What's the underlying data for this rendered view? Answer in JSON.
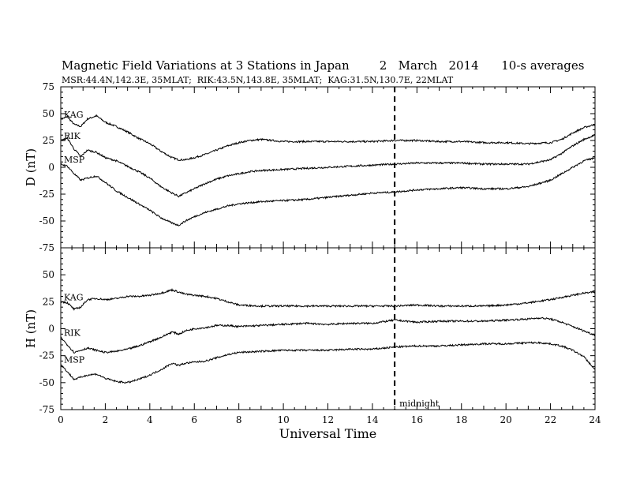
{
  "chart_data": [
    {
      "type": "line",
      "title": "Magnetic Field Variations at 3 Stations in Japan        2   March   2014      10-s averages",
      "subtitle": "MSR:44.4N,142.3E, 35MLAT;  RIK:43.5N,143.8E, 35MLAT;  KAG:31.5N,130.7E, 22MLAT",
      "ylabel": "D (nT)",
      "xlabel": "",
      "xlim": [
        0,
        24
      ],
      "ylim": [
        -75,
        75
      ],
      "yticks": [
        "75",
        "50",
        "25",
        "0",
        "-25",
        "-50",
        "-75"
      ],
      "series": [
        {
          "name": "KAG",
          "x": [
            0,
            0.3,
            0.6,
            0.9,
            1.2,
            1.6,
            2,
            2.5,
            3,
            3.5,
            4,
            4.5,
            5,
            5.3,
            5.6,
            6,
            6.5,
            7,
            7.5,
            8,
            8.5,
            9,
            9.5,
            10,
            11,
            12,
            13,
            14,
            15,
            16,
            17,
            18,
            19,
            20,
            21,
            22,
            22.5,
            23,
            23.5,
            24
          ],
          "values": [
            45,
            47,
            40,
            38,
            45,
            48,
            42,
            38,
            33,
            27,
            22,
            15,
            9,
            7,
            7,
            9,
            12,
            16,
            20,
            23,
            25,
            26,
            25,
            24,
            24,
            24,
            24,
            24,
            25,
            25,
            24,
            24,
            23,
            23,
            22,
            23,
            26,
            32,
            37,
            40
          ]
        },
        {
          "name": "RIK",
          "x": [
            0,
            0.3,
            0.6,
            0.9,
            1.2,
            1.6,
            2,
            2.5,
            3,
            3.5,
            4,
            4.5,
            5,
            5.3,
            5.6,
            6,
            6.5,
            7,
            7.5,
            8,
            8.5,
            9,
            10,
            11,
            12,
            13,
            14,
            15,
            16,
            17,
            18,
            19,
            20,
            21,
            22,
            22.5,
            23,
            23.5,
            24
          ],
          "values": [
            25,
            27,
            17,
            10,
            16,
            14,
            9,
            6,
            1,
            -4,
            -10,
            -18,
            -24,
            -27,
            -24,
            -20,
            -15,
            -11,
            -8,
            -6,
            -4,
            -3,
            -2,
            -1,
            0,
            1,
            2,
            3,
            4,
            4,
            4,
            3,
            3,
            3,
            7,
            13,
            20,
            26,
            30
          ]
        },
        {
          "name": "MSP",
          "x": [
            0,
            0.3,
            0.6,
            0.9,
            1.2,
            1.6,
            2,
            2.5,
            3,
            3.5,
            4,
            4.5,
            5,
            5.3,
            5.6,
            6,
            6.5,
            7,
            7.5,
            8,
            8.5,
            9,
            10,
            11,
            12,
            13,
            14,
            15,
            16,
            17,
            18,
            19,
            20,
            21,
            22,
            22.5,
            23,
            23.5,
            24
          ],
          "values": [
            3,
            1,
            -6,
            -12,
            -10,
            -8,
            -14,
            -22,
            -28,
            -34,
            -40,
            -47,
            -52,
            -54,
            -50,
            -46,
            -42,
            -39,
            -36,
            -34,
            -33,
            -32,
            -31,
            -30,
            -28,
            -26,
            -24,
            -23,
            -21,
            -20,
            -19,
            -20,
            -20,
            -18,
            -12,
            -6,
            0,
            6,
            9
          ]
        }
      ],
      "vline": {
        "x": 15,
        "label": "",
        "style": "dashed"
      }
    },
    {
      "type": "line",
      "ylabel": "H (nT)",
      "xlabel": "Universal Time",
      "xlim": [
        0,
        24
      ],
      "ylim": [
        -75,
        75
      ],
      "xticks": [
        "0",
        "2",
        "4",
        "6",
        "8",
        "10",
        "12",
        "14",
        "16",
        "18",
        "20",
        "22",
        "24"
      ],
      "yticks": [
        "",
        "50",
        "25",
        "0",
        "-25",
        "-50",
        "-75"
      ],
      "series": [
        {
          "name": "KAG",
          "x": [
            0,
            0.3,
            0.6,
            0.9,
            1.2,
            1.6,
            2,
            2.5,
            3,
            3.5,
            4,
            4.5,
            5,
            5.3,
            5.6,
            6,
            6.5,
            7,
            7.5,
            8,
            9,
            10,
            11,
            12,
            13,
            14,
            15,
            16,
            17,
            18,
            19,
            20,
            21,
            22,
            23,
            23.5,
            24
          ],
          "values": [
            25,
            24,
            18,
            20,
            27,
            28,
            27,
            28,
            30,
            30,
            31,
            33,
            36,
            34,
            32,
            31,
            30,
            28,
            25,
            22,
            21,
            21,
            21,
            21,
            21,
            21,
            21,
            22,
            21,
            21,
            21,
            22,
            24,
            27,
            31,
            33,
            34
          ]
        },
        {
          "name": "RIK",
          "x": [
            0,
            0.3,
            0.6,
            0.9,
            1.2,
            1.6,
            2,
            2.5,
            3,
            3.5,
            4,
            4.5,
            5,
            5.3,
            5.6,
            6,
            6.5,
            7,
            7.5,
            8,
            9,
            10,
            11,
            12,
            13,
            14,
            15,
            16,
            17,
            18,
            19,
            20,
            21,
            21.5,
            22,
            22.5,
            23,
            23.5,
            24
          ],
          "values": [
            -8,
            -15,
            -22,
            -20,
            -18,
            -20,
            -22,
            -21,
            -19,
            -16,
            -12,
            -8,
            -3,
            -5,
            -2,
            0,
            1,
            3,
            3,
            2,
            3,
            4,
            5,
            4,
            5,
            5,
            8,
            6,
            7,
            7,
            7,
            8,
            9,
            10,
            9,
            6,
            2,
            -2,
            -6
          ]
        },
        {
          "name": "MSP",
          "x": [
            0,
            0.3,
            0.6,
            0.9,
            1.2,
            1.6,
            2,
            2.5,
            3,
            3.5,
            4,
            4.5,
            5,
            5.3,
            5.6,
            6,
            6.5,
            7,
            7.5,
            8,
            9,
            10,
            11,
            12,
            13,
            14,
            15,
            16,
            17,
            18,
            19,
            20,
            21,
            21.5,
            22,
            22.5,
            23,
            23.5,
            24
          ],
          "values": [
            -33,
            -40,
            -47,
            -45,
            -43,
            -42,
            -46,
            -49,
            -50,
            -47,
            -43,
            -38,
            -32,
            -34,
            -32,
            -31,
            -30,
            -27,
            -24,
            -22,
            -21,
            -20,
            -20,
            -20,
            -19,
            -19,
            -17,
            -16,
            -16,
            -15,
            -14,
            -14,
            -13,
            -13,
            -14,
            -16,
            -20,
            -26,
            -38
          ]
        }
      ],
      "vline": {
        "x": 15,
        "label": "midnight",
        "style": "dashed"
      }
    }
  ]
}
